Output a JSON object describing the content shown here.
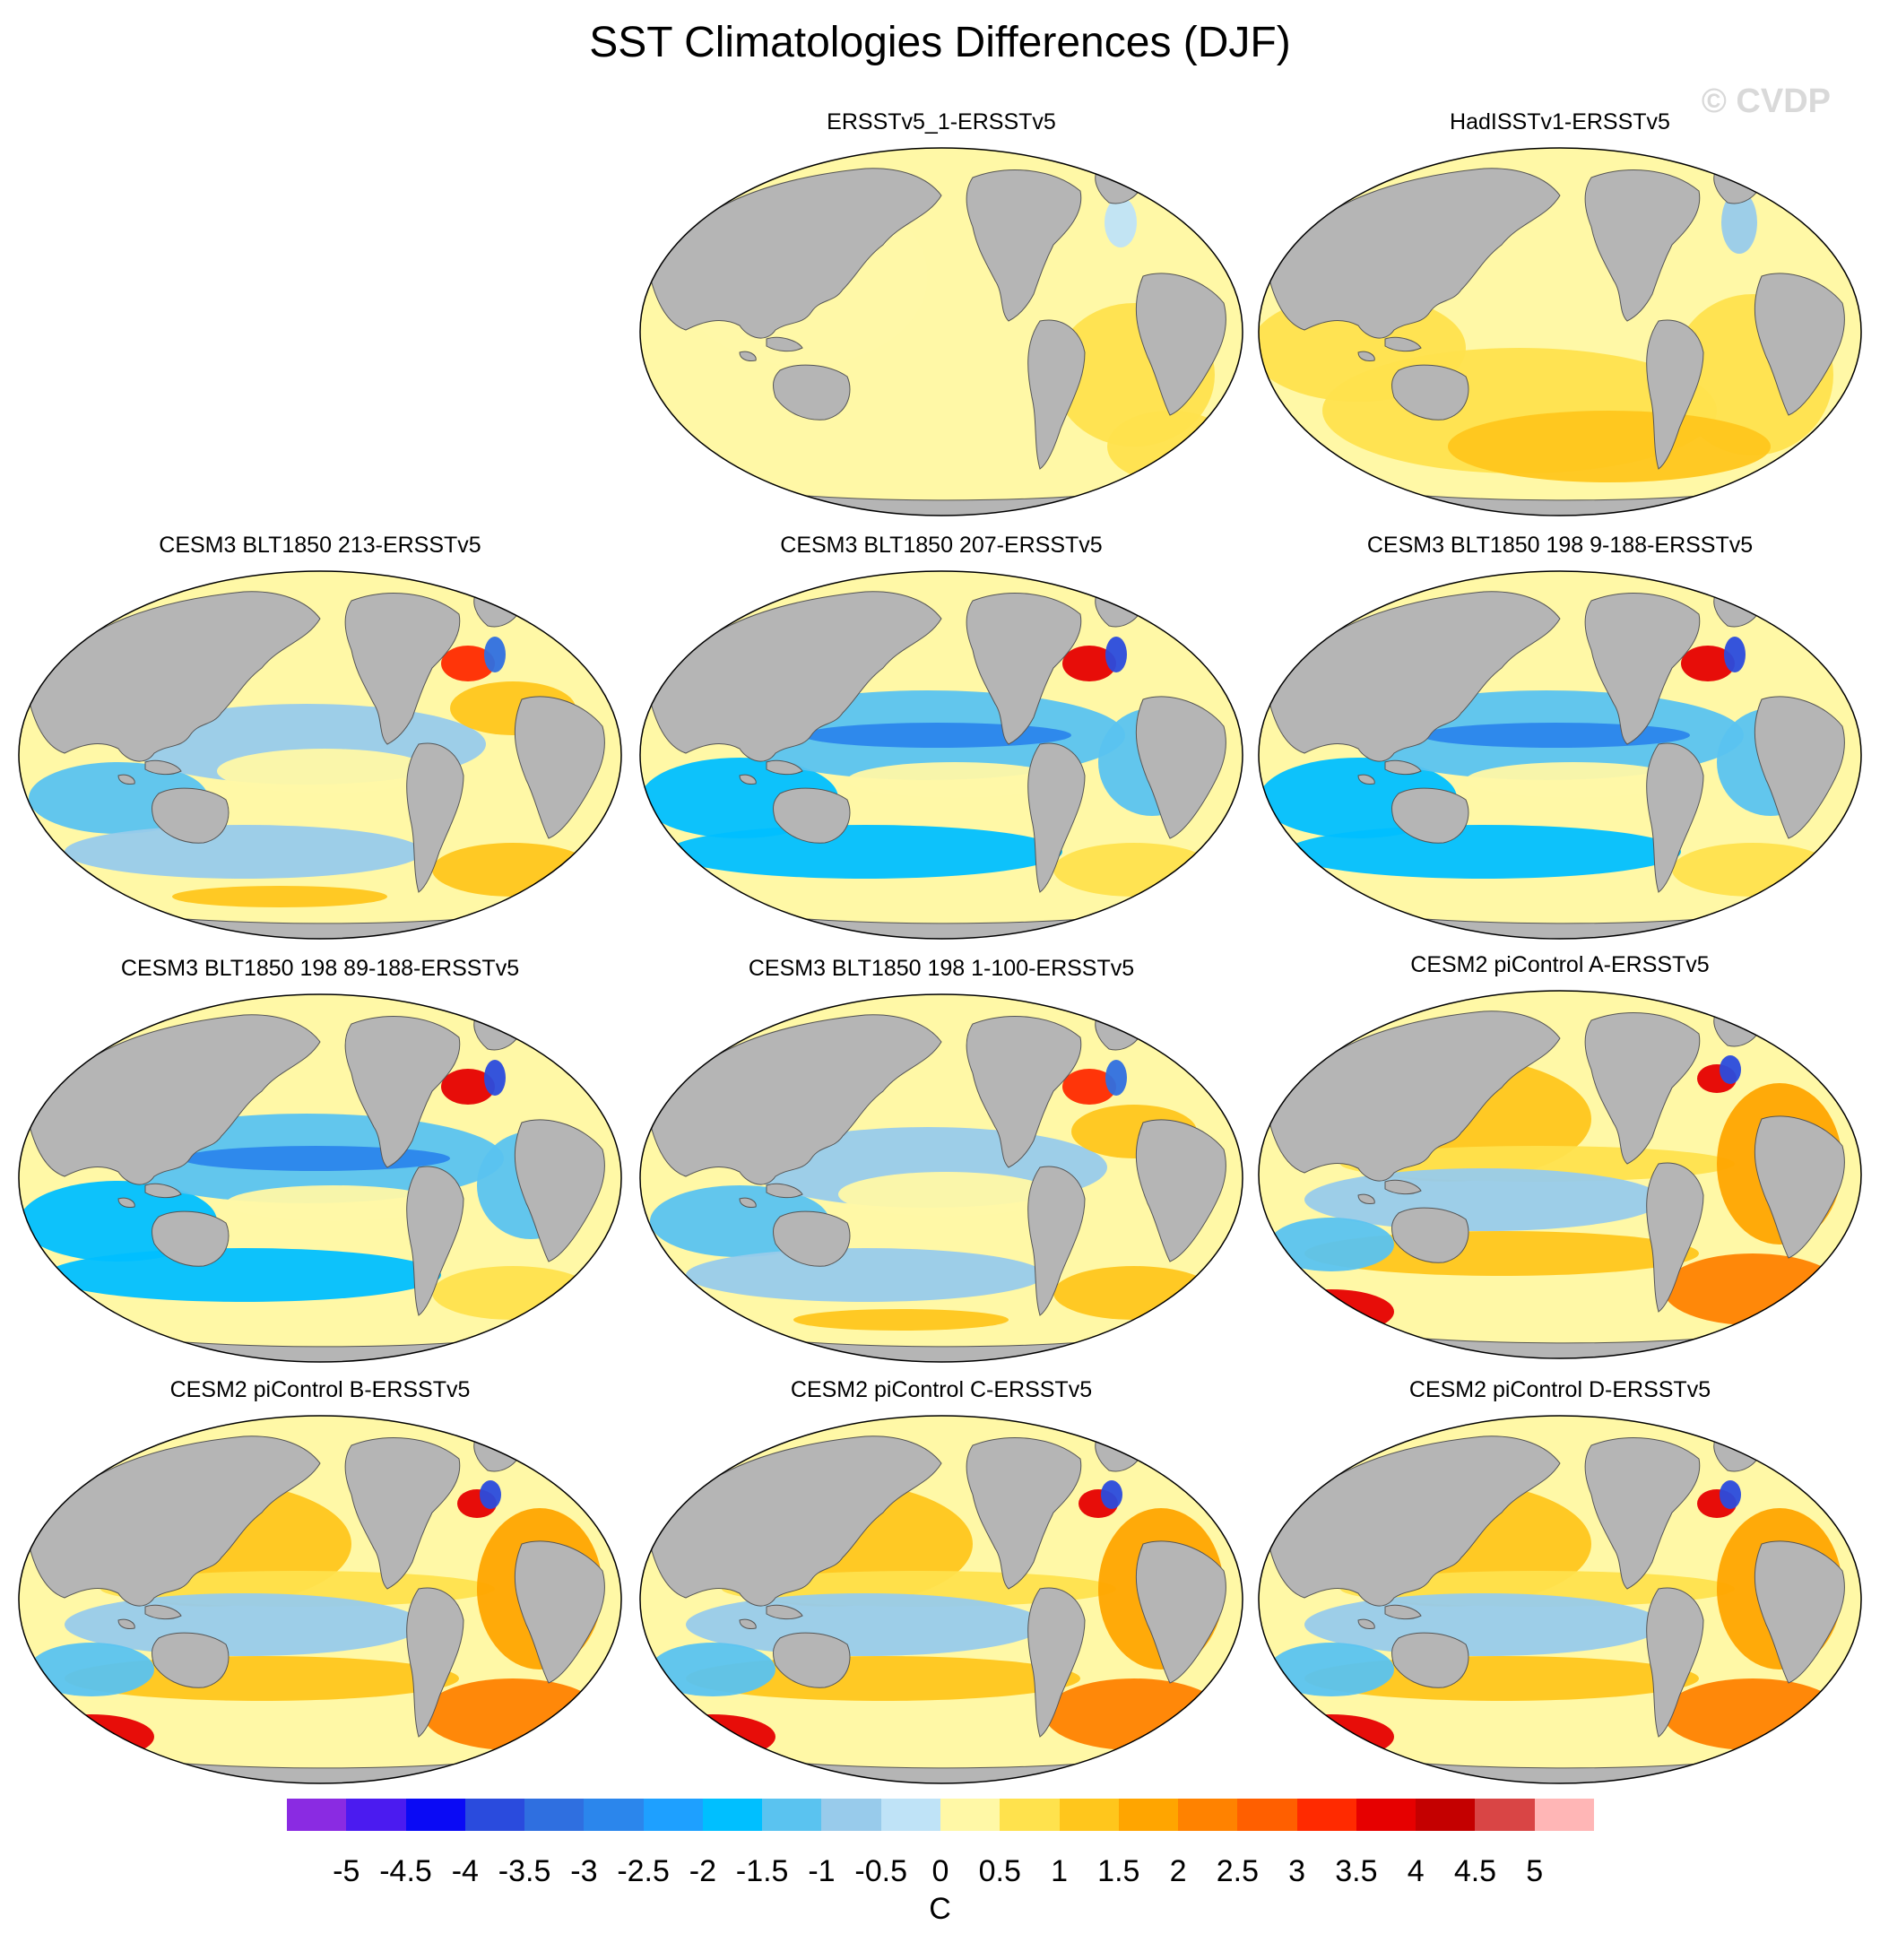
{
  "title": "SST Climatologies Differences (DJF)",
  "watermark": "© CVDP",
  "panels": [
    {
      "id": "p1",
      "title": "ERSSTv5_1-ERSSTv5",
      "pattern": "obs-small"
    },
    {
      "id": "p2",
      "title": "HadISSTv1-ERSSTv5",
      "pattern": "obs-warm"
    },
    {
      "id": "p3",
      "title": "CESM3 BLT1850 213-ERSSTv5",
      "pattern": "cesm3"
    },
    {
      "id": "p4",
      "title": "CESM3 BLT1850 207-ERSSTv5",
      "pattern": "cesm3-cold"
    },
    {
      "id": "p5",
      "title": "CESM3 BLT1850 198 9-188-ERSSTv5",
      "pattern": "cesm3-cold"
    },
    {
      "id": "p6",
      "title": "CESM3 BLT1850 198 89-188-ERSSTv5",
      "pattern": "cesm3-cold"
    },
    {
      "id": "p7",
      "title": "CESM3 BLT1850 198 1-100-ERSSTv5",
      "pattern": "cesm3"
    },
    {
      "id": "p8",
      "title": "CESM2 piControl A-ERSSTv5",
      "pattern": "cesm2"
    },
    {
      "id": "p9",
      "title": "CESM2 piControl B-ERSSTv5",
      "pattern": "cesm2"
    },
    {
      "id": "p10",
      "title": "CESM2 piControl C-ERSSTv5",
      "pattern": "cesm2"
    },
    {
      "id": "p11",
      "title": "CESM2 piControl D-ERSSTv5",
      "pattern": "cesm2"
    }
  ],
  "colorbar": {
    "units": "C",
    "tick_labels": [
      "-5",
      "-4.5",
      "-4",
      "-3.5",
      "-3",
      "-2.5",
      "-2",
      "-1.5",
      "-1",
      "-0.5",
      "0",
      "0.5",
      "1",
      "1.5",
      "2",
      "2.5",
      "3",
      "3.5",
      "4",
      "4.5",
      "5"
    ],
    "colors": [
      "#8a2be2",
      "#4b1bf0",
      "#0a0af5",
      "#2a4bdd",
      "#2f6fe0",
      "#2b86ec",
      "#1ea0ff",
      "#00bfff",
      "#5ac3f0",
      "#98cbeb",
      "#bfe3f7",
      "#fff8a6",
      "#ffe24d",
      "#ffc61c",
      "#ffa500",
      "#ff8200",
      "#ff5f00",
      "#ff2a00",
      "#e60000",
      "#c40000",
      "#d94545",
      "#ffb6b6"
    ]
  },
  "map_colors": {
    "land": "#b5b5b5",
    "ocean_neutral": "#fff8a6"
  }
}
